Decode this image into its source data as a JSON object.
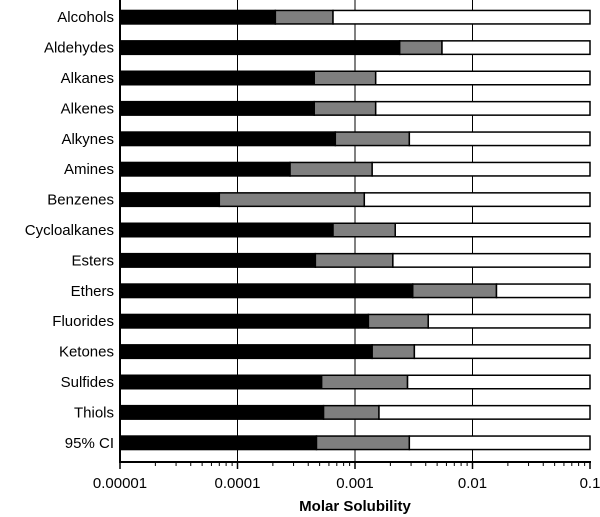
{
  "chart_data": {
    "type": "bar",
    "stacked": true,
    "orientation": "horizontal",
    "x_scale": "log",
    "xlim": [
      1e-05,
      0.1
    ],
    "xlabel": "Molar Solubility",
    "ylabel": "",
    "grid": true,
    "x_ticks": [
      "0.00001",
      "0.0001",
      "0.001",
      "0.01",
      "0.1"
    ],
    "categories": [
      "Alcohols",
      "Aldehydes",
      "Alkanes",
      "Alkenes",
      "Alkynes",
      "Amines",
      "Benzenes",
      "Cycloalkanes",
      "Esters",
      "Ethers",
      "Fluorides",
      "Ketones",
      "Sulfides",
      "Thiols",
      "95% CI"
    ],
    "segments": [
      {
        "color": "#000000",
        "ends": [
          0.00021,
          0.0024,
          0.00045,
          0.00045,
          0.00068,
          0.00028,
          7e-05,
          0.00065,
          0.00046,
          0.0031,
          0.0013,
          0.0014,
          0.00052,
          0.00054,
          0.00047
        ]
      },
      {
        "color": "#7f7f7f",
        "ends": [
          0.00065,
          0.0055,
          0.0015,
          0.0015,
          0.0029,
          0.0014,
          0.0012,
          0.0022,
          0.0021,
          0.016,
          0.0042,
          0.0032,
          0.0028,
          0.0016,
          0.0029
        ]
      },
      {
        "color": "#ffffff",
        "ends": [
          0.1,
          0.1,
          0.1,
          0.1,
          0.1,
          0.1,
          0.1,
          0.1,
          0.1,
          0.1,
          0.1,
          0.1,
          0.1,
          0.1,
          0.1
        ]
      }
    ]
  }
}
